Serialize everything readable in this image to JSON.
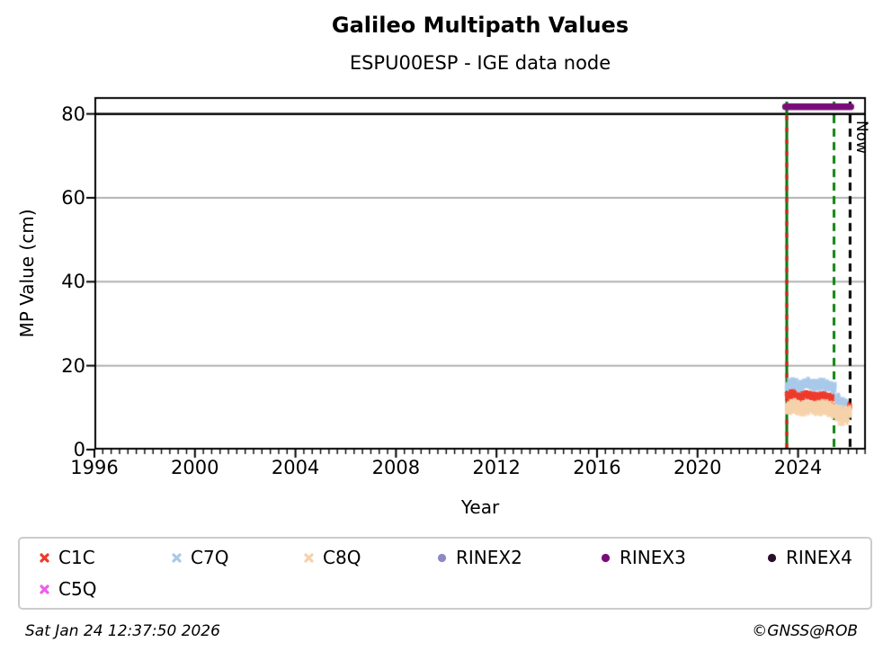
{
  "header": {
    "title": "Galileo Multipath Values",
    "subtitle": "ESPU00ESP - IGE data node"
  },
  "footer": {
    "timestamp": "Sat Jan 24 12:37:50 2026",
    "credit": "©GNSS@ROB"
  },
  "legend": {
    "items": [
      {
        "label": "C1C",
        "color": "#ee3a2c",
        "marker": "x"
      },
      {
        "label": "C7Q",
        "color": "#a9c9ea",
        "marker": "x"
      },
      {
        "label": "C8Q",
        "color": "#f6d2ab",
        "marker": "x"
      },
      {
        "label": "RINEX2",
        "color": "#8d89c6",
        "marker": "circle"
      },
      {
        "label": "RINEX3",
        "color": "#7a0c7a",
        "marker": "circle"
      },
      {
        "label": "RINEX4",
        "color": "#2a0e2a",
        "marker": "circle"
      },
      {
        "label": "C5Q",
        "color": "#ee5cee",
        "marker": "x"
      }
    ]
  },
  "chart_data": {
    "type": "scatter",
    "title": "Galileo Multipath Values",
    "subtitle": "ESPU00ESP - IGE data node",
    "xlabel": "Year",
    "ylabel": "MP Value (cm)",
    "now_label": "Now",
    "xlim": [
      1996,
      2026.7
    ],
    "ylim": [
      0,
      84
    ],
    "yticks": [
      0,
      20,
      40,
      60,
      80
    ],
    "xticks_major": [
      1996,
      2000,
      2004,
      2008,
      2012,
      2016,
      2020,
      2024
    ],
    "xticks_minor_per_year": 3,
    "grid": {
      "horizontal": [
        20,
        40,
        60
      ],
      "color": "#b1b1b1"
    },
    "threshold_line": {
      "y": 80,
      "color": "#000000"
    },
    "vlines": [
      {
        "x": 2023.55,
        "style": "solid",
        "color": "#067106",
        "overlay": {
          "style": "dashed",
          "color": "#d21e10"
        },
        "name": "data-start-line"
      },
      {
        "x": 2025.43,
        "style": "dashed",
        "color": "#0d820d",
        "name": "green-dashed-line"
      },
      {
        "x": 2026.07,
        "style": "dashed",
        "color": "#000000",
        "label": "Now",
        "name": "now-line"
      }
    ],
    "rinex3_bar": {
      "x0": 2023.5,
      "x1": 2026.1,
      "y": 81.7,
      "color": "#7a0c7a"
    },
    "series": [
      {
        "name": "C1C",
        "color": "#ee3a2c",
        "marker": "x",
        "density": 240,
        "segments": [
          [
            [
              2023.53,
              12.8,
              0.65
            ],
            [
              2023.8,
              13.4,
              0.65
            ],
            [
              2024.05,
              12.7,
              0.6
            ],
            [
              2024.35,
              13.1,
              0.6
            ],
            [
              2024.65,
              12.5,
              0.6
            ],
            [
              2024.95,
              12.9,
              0.6
            ],
            [
              2025.25,
              12.4,
              0.6
            ],
            [
              2025.48,
              12.2,
              0.7
            ]
          ],
          [
            [
              2025.93,
              9.7,
              0.9
            ],
            [
              2026.08,
              10.4,
              0.8
            ]
          ]
        ]
      },
      {
        "name": "C7Q",
        "color": "#a9c9ea",
        "marker": "x",
        "density": 290,
        "segments": [
          [
            [
              2023.53,
              15.1,
              0.85
            ],
            [
              2023.8,
              15.9,
              0.85
            ],
            [
              2024.05,
              15.1,
              0.8
            ],
            [
              2024.35,
              15.9,
              0.8
            ],
            [
              2024.65,
              15.2,
              0.8
            ],
            [
              2024.95,
              15.7,
              0.8
            ],
            [
              2025.25,
              15.1,
              0.8
            ],
            [
              2025.48,
              14.5,
              0.8
            ]
          ],
          [
            [
              2025.5,
              12.6,
              0.9
            ],
            [
              2025.7,
              11.2,
              1.0
            ],
            [
              2025.92,
              11.0,
              0.9
            ]
          ]
        ]
      },
      {
        "name": "C8Q",
        "color": "#f6d2ab",
        "marker": "x",
        "density": 310,
        "segments": [
          [
            [
              2023.53,
              9.9,
              1.25
            ],
            [
              2023.85,
              10.4,
              1.25
            ],
            [
              2024.15,
              9.7,
              1.2
            ],
            [
              2024.45,
              10.2,
              1.2
            ],
            [
              2024.75,
              9.8,
              1.2
            ],
            [
              2025.05,
              10.1,
              1.25
            ],
            [
              2025.35,
              9.5,
              1.4
            ],
            [
              2025.55,
              8.7,
              1.8
            ],
            [
              2025.75,
              7.9,
              1.9
            ],
            [
              2025.95,
              8.4,
              1.7
            ],
            [
              2026.08,
              9.0,
              1.3
            ]
          ]
        ]
      },
      {
        "name": "RINEX2",
        "color": "#8d89c6",
        "marker": "circle",
        "density": 0,
        "segments": []
      },
      {
        "name": "RINEX3",
        "color": "#7a0c7a",
        "marker": "circle",
        "density": 0,
        "segments": []
      },
      {
        "name": "RINEX4",
        "color": "#2a0e2a",
        "marker": "circle",
        "density": 0,
        "segments": []
      },
      {
        "name": "C5Q",
        "color": "#ee5cee",
        "marker": "x",
        "density": 0,
        "segments": []
      }
    ]
  }
}
